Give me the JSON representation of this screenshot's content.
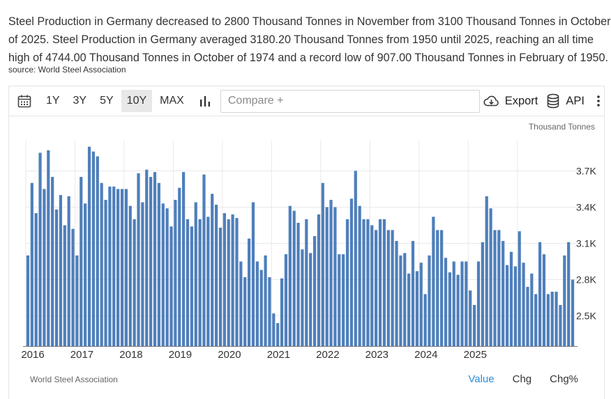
{
  "summary": {
    "line1": "Steel Production in Germany decreased to 2800 Thousand Tonnes in November from 3100 Thousand Tonnes in October",
    "line2": "of 2025. Steel Production in Germany averaged 3180.20 Thousand Tonnes from 1950 until 2025, reaching an all time",
    "line3": "high of 4744.00 Thousand Tonnes in October of 1974 and a record low of 907.00 Thousand Tonnes in February of 1950.",
    "source": "source: World Steel Association"
  },
  "toolbar": {
    "ranges": [
      "1Y",
      "3Y",
      "5Y",
      "10Y",
      "MAX"
    ],
    "active_range": "10Y",
    "compare_placeholder": "Compare +",
    "export_label": "Export",
    "api_label": "API"
  },
  "chart_data": {
    "type": "bar",
    "unit_label": "Thousand Tonnes",
    "start": "2016-01",
    "values": [
      3000,
      3600,
      3350,
      3850,
      3550,
      3870,
      3650,
      3380,
      3500,
      3250,
      3490,
      3220,
      3000,
      3650,
      3430,
      3900,
      3860,
      3820,
      3600,
      3460,
      3570,
      3570,
      3550,
      3550,
      3550,
      3410,
      3300,
      3680,
      3440,
      3710,
      3650,
      3690,
      3600,
      3430,
      3390,
      3240,
      3460,
      3560,
      3690,
      3300,
      3240,
      3440,
      3300,
      3670,
      3320,
      3510,
      3420,
      3230,
      3350,
      3300,
      3340,
      3310,
      2950,
      2820,
      3140,
      3440,
      2950,
      2880,
      3000,
      2820,
      2520,
      2440,
      2810,
      3010,
      3410,
      3370,
      3270,
      3050,
      3300,
      3020,
      3160,
      3340,
      3600,
      3400,
      3460,
      3400,
      3010,
      3010,
      3300,
      3470,
      3700,
      3410,
      3300,
      3300,
      3250,
      3210,
      3300,
      3300,
      3210,
      3210,
      3120,
      3000,
      3020,
      2850,
      3120,
      2870,
      2940,
      2680,
      3000,
      3320,
      3210,
      3210,
      2980,
      2860,
      2950,
      2840,
      2950,
      2950,
      2710,
      2590,
      2950,
      3110,
      3490,
      3390,
      3210,
      3210,
      3120,
      2920,
      3030,
      2910,
      3200,
      2940,
      2740,
      2850,
      2680,
      3110,
      3010,
      2680,
      2700,
      2700,
      2590,
      3000,
      3110,
      2800
    ],
    "y_ticks": [
      2500,
      2800,
      3100,
      3400,
      3700
    ],
    "y_tick_labels": [
      "2.5K",
      "2.8K",
      "3.1K",
      "3.4K",
      "3.7K"
    ],
    "ylim": [
      2250,
      3950
    ],
    "x_labels": [
      "2016",
      "2017",
      "2018",
      "2019",
      "2020",
      "2021",
      "2022",
      "2023",
      "2024",
      "2025"
    ],
    "bar_color": "#4f7fbb"
  },
  "footer": {
    "source": "World Steel Association",
    "tabs": [
      "Value",
      "Chg",
      "Chg%"
    ],
    "active_tab": "Value",
    "active_color": "#2a8fd8"
  }
}
